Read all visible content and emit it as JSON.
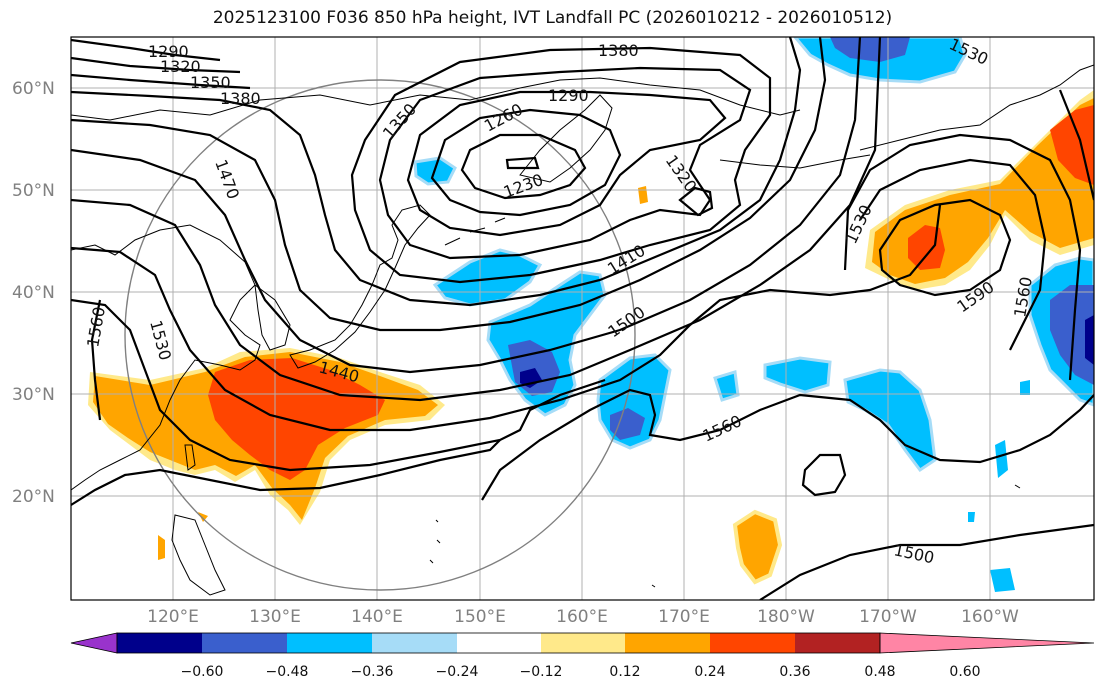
{
  "title": "2025123100 F036 850 hPa height, IVT Landfall PC (2026010212 - 2026010512)",
  "map": {
    "lat_labels": [
      "60°N",
      "50°N",
      "40°N",
      "30°N",
      "20°N"
    ],
    "lon_labels": [
      "120°E",
      "130°E",
      "140°E",
      "150°E",
      "160°E",
      "170°E",
      "180°W",
      "170°W",
      "160°W"
    ],
    "contour_labels": [
      "1290",
      "1320",
      "1350",
      "1380",
      "1380",
      "1290",
      "1260",
      "1350",
      "1230",
      "1320",
      "1470",
      "1410",
      "1500",
      "1530",
      "1530",
      "1440",
      "1560",
      "1560",
      "1590",
      "1560",
      "1500",
      "1530"
    ]
  },
  "colorbar": {
    "ticks": [
      "−0.60",
      "−0.48",
      "−0.36",
      "−0.24",
      "−0.12",
      "0.12",
      "0.24",
      "0.36",
      "0.48",
      "0.60"
    ],
    "colors": [
      "#9933cc",
      "#00008b",
      "#3a5fcd",
      "#00bfff",
      "#a6dcf7",
      "#ffffff",
      "#ffe98a",
      "#ffa500",
      "#ff4500",
      "#b22222",
      "#ff85a5"
    ]
  }
}
